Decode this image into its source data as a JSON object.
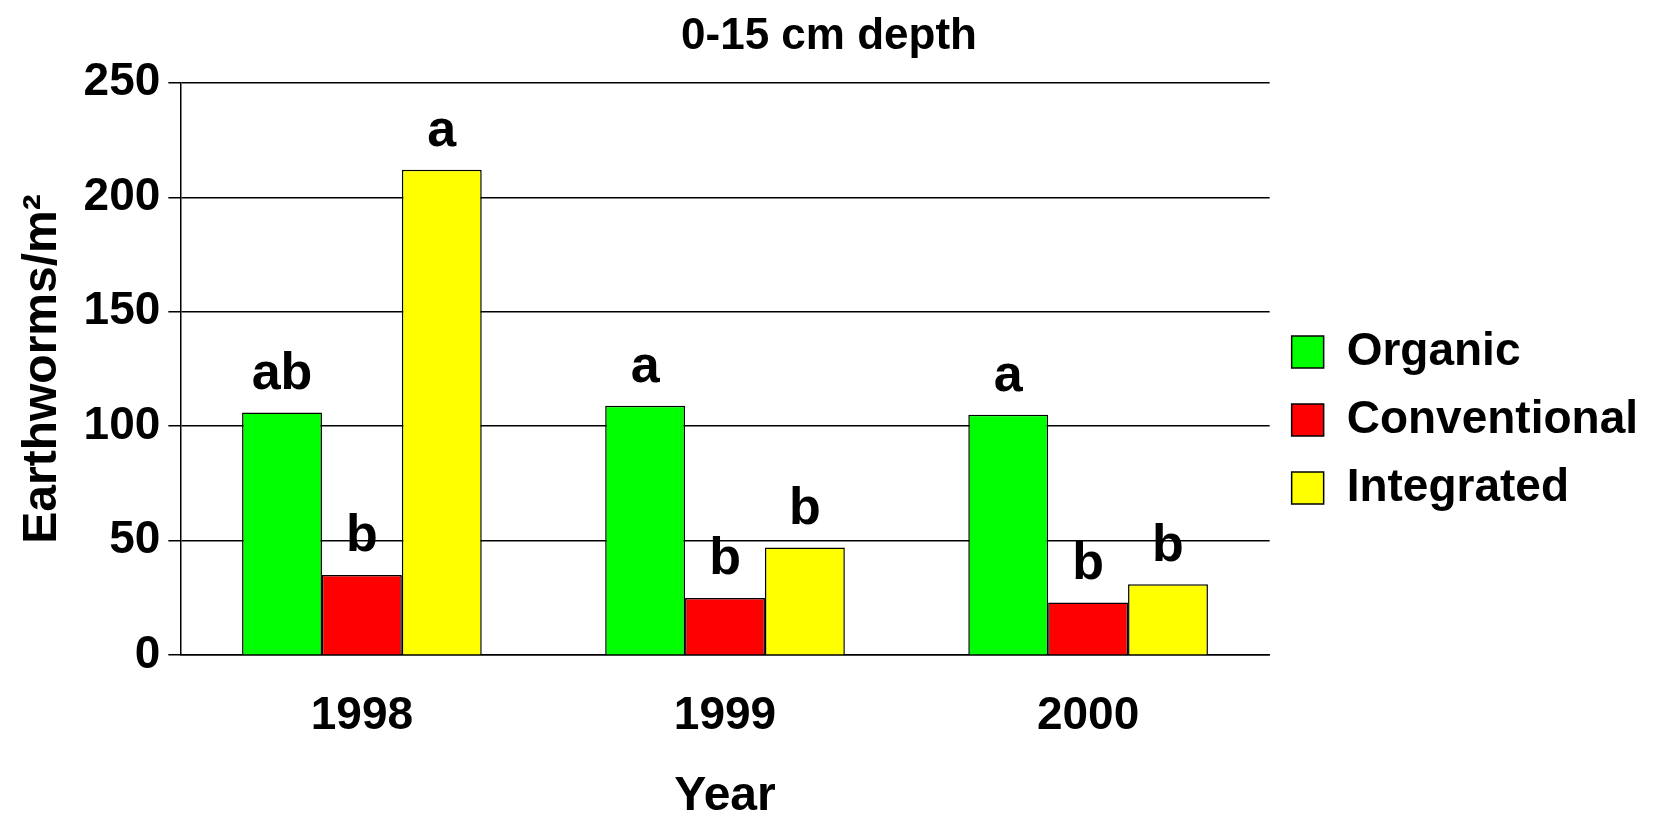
{
  "chart_data": {
    "type": "bar",
    "title": "0-15 cm depth",
    "xlabel": "Year",
    "ylabel": "Earthworms/m²",
    "categories": [
      "1998",
      "1999",
      "2000"
    ],
    "series": [
      {
        "name": "Organic",
        "color": "#00ff00",
        "values": [
          106,
          109,
          105
        ]
      },
      {
        "name": "Conventional",
        "color": "#ff0000",
        "values": [
          35,
          25,
          23
        ]
      },
      {
        "name": "Integrated",
        "color": "#ffff00",
        "values": [
          212,
          47,
          31
        ]
      }
    ],
    "ylim": [
      0,
      250
    ],
    "yticks": [
      0,
      50,
      100,
      150,
      200,
      250
    ],
    "grid": "y",
    "legend": "right",
    "annotations": [
      "ab",
      "b",
      "a",
      "a",
      "b",
      "b",
      "a",
      "b",
      "b"
    ]
  }
}
